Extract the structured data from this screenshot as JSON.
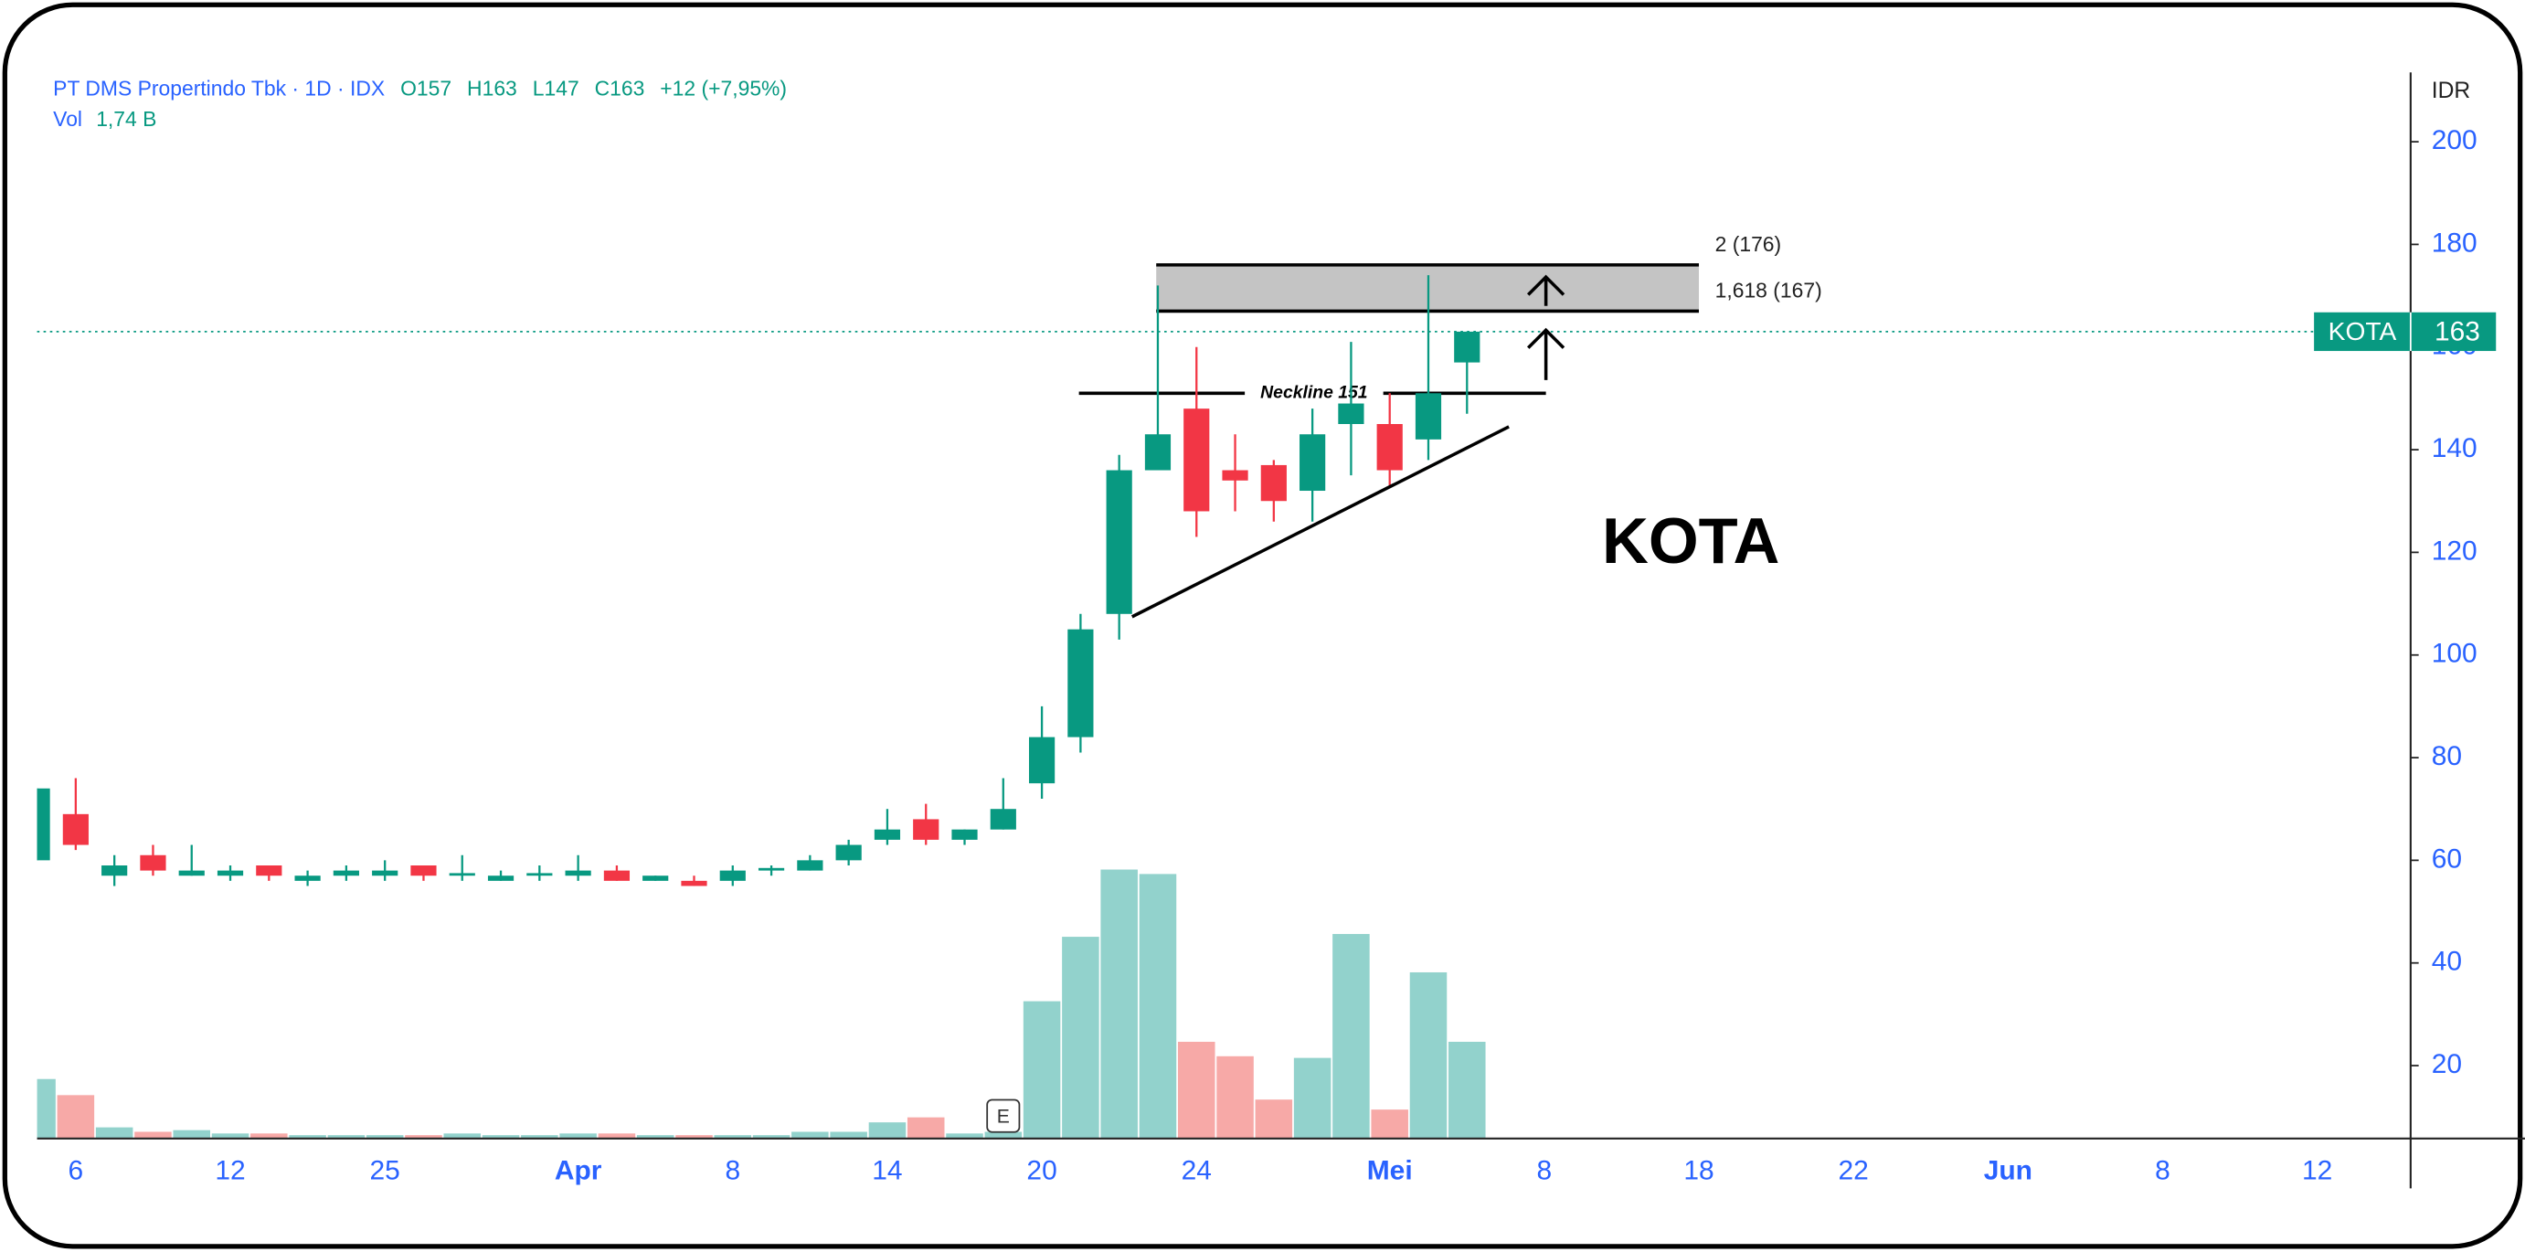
{
  "chart_data": {
    "type": "candlestick",
    "header": {
      "symbol": "PT DMS Propertindo Tbk · 1D · IDX",
      "ohlc": [
        "O157",
        "H163",
        "L147",
        "C163"
      ],
      "change": "+12 (+7,95%)",
      "vol_label": "Vol",
      "vol_value": "1,74 B"
    },
    "currency": "IDR",
    "ticker": "KOTA",
    "annotation": "KOTA",
    "earnings_marker": "E",
    "categories": [
      null,
      "6",
      null,
      null,
      null,
      "12",
      null,
      null,
      null,
      "25",
      null,
      null,
      null,
      null,
      "Apr",
      null,
      null,
      null,
      "8",
      null,
      null,
      null,
      "14",
      null,
      null,
      null,
      "20",
      null,
      null,
      null,
      "24",
      null,
      null,
      null,
      null,
      "Mei",
      null,
      null,
      null,
      "8",
      null,
      null,
      null,
      "18",
      null,
      null,
      null,
      "22",
      null,
      null,
      null,
      "Jun",
      null,
      null,
      null,
      "8",
      null,
      null,
      null,
      "12"
    ],
    "open": [
      60,
      69,
      57,
      61,
      57,
      57,
      59,
      56,
      57,
      57,
      59,
      57,
      56,
      57,
      57,
      58,
      56,
      56,
      56,
      58,
      58,
      60,
      64,
      68,
      64,
      66,
      75,
      84,
      108,
      136,
      148,
      136,
      137,
      132,
      145,
      145,
      142,
      157,
      null,
      null,
      null,
      null,
      null,
      null,
      null,
      null,
      null,
      null,
      null,
      null,
      null,
      null,
      null,
      null,
      null,
      null,
      null,
      null,
      null,
      null
    ],
    "high": [
      74,
      76,
      61,
      63,
      63,
      59,
      59,
      58,
      59,
      60,
      59,
      61,
      58,
      59,
      61,
      59,
      57,
      57,
      59,
      59,
      61,
      64,
      70,
      71,
      66,
      76,
      90,
      108,
      139,
      172,
      160,
      143,
      138,
      148,
      161,
      151,
      174,
      163,
      null,
      null,
      null,
      null,
      null,
      null,
      null,
      null,
      null,
      null,
      null,
      null,
      null,
      null,
      null,
      null,
      null,
      null,
      null,
      null,
      null,
      null
    ],
    "low": [
      60,
      62,
      55,
      57,
      57,
      56,
      56,
      55,
      56,
      56,
      56,
      56,
      56,
      56,
      56,
      56,
      56,
      55,
      55,
      57,
      58,
      59,
      63,
      63,
      63,
      66,
      72,
      81,
      103,
      136,
      123,
      128,
      126,
      126,
      135,
      133,
      138,
      147,
      null,
      null,
      null,
      null,
      null,
      null,
      null,
      null,
      null,
      null,
      null,
      null,
      null,
      null,
      null,
      null,
      null,
      null,
      null,
      null,
      null,
      null
    ],
    "close": [
      74,
      63,
      59,
      58,
      58,
      58,
      57,
      57,
      58,
      58,
      57,
      57.5,
      57,
      57.5,
      58,
      56,
      57,
      55,
      58,
      58.5,
      60,
      63,
      66,
      64,
      66,
      70,
      84,
      105,
      136,
      143,
      128,
      134,
      130,
      143,
      149,
      136,
      151,
      163,
      null,
      null,
      null,
      null,
      null,
      null,
      null,
      null,
      null,
      null,
      null,
      null,
      null,
      null,
      null,
      null,
      null,
      null,
      null,
      null,
      null,
      null
    ],
    "volume": [
      1.07,
      0.78,
      0.2,
      0.12,
      0.15,
      0.09,
      0.09,
      0.06,
      0.06,
      0.06,
      0.06,
      0.09,
      0.06,
      0.06,
      0.09,
      0.09,
      0.06,
      0.06,
      0.06,
      0.06,
      0.12,
      0.12,
      0.29,
      0.38,
      0.09,
      0.12,
      2.47,
      3.63,
      4.84,
      4.76,
      1.74,
      1.48,
      0.7,
      1.45,
      3.68,
      0.52,
      2.99,
      1.74,
      null,
      null,
      null,
      null,
      null,
      null,
      null,
      null,
      null,
      null,
      null,
      null,
      null,
      null,
      null,
      null,
      null,
      null,
      null,
      null,
      null,
      null
    ],
    "colors": {
      "up": "#089981",
      "down": "#f23645",
      "volume_up": "#92d2cc",
      "volume_down": "#f7a9a7"
    },
    "ylim": [
      5.8,
      213.5
    ],
    "yticks": [
      20,
      40,
      60,
      80,
      100,
      120,
      140,
      160,
      180,
      200
    ],
    "levels": [
      {
        "value": 176,
        "label": "2 (176)"
      },
      {
        "value": 167,
        "label": "1,618 (167)"
      }
    ],
    "neckline": {
      "value": 151,
      "label": "Neckline 151"
    }
  }
}
